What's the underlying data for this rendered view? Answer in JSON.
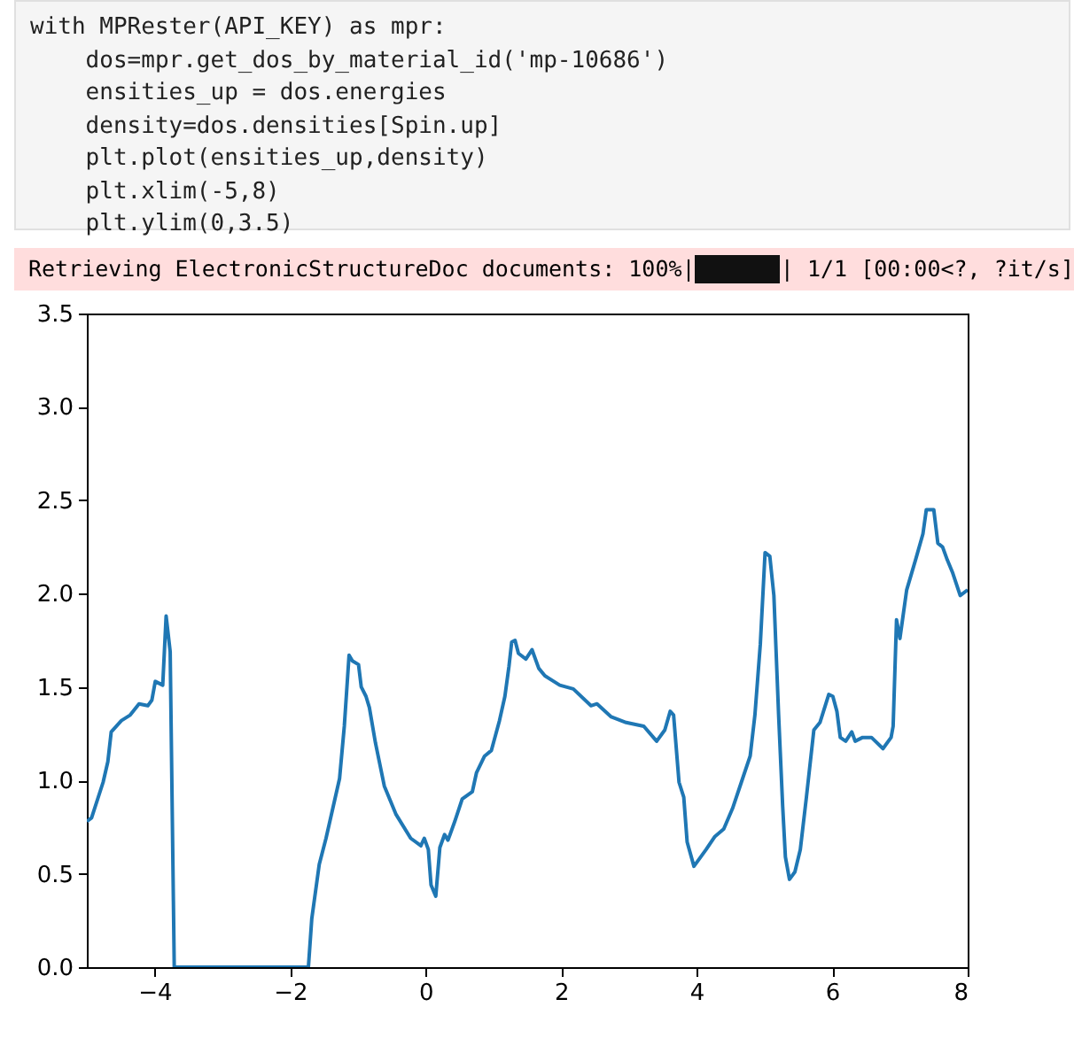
{
  "chart_data": {
    "type": "line",
    "annotations": [
      "with MPRester(API_KEY) as mpr:",
      "    dos=mpr.get_dos_by_material_id('mp-10686')",
      "    ensities_up = dos.energies",
      "    density=dos.densities[Spin.up]",
      "    plt.plot(ensities_up,density)",
      "    plt.xlim(-5,8)",
      "    plt.ylim(0,3.5)",
      "Retrieving ElectronicStructureDoc documents: 100%|",
      "| 1/1 [00:00<?, ?it/s]"
    ],
    "x": [
      -5,
      -4.93,
      -4.76,
      -4.69,
      -4.64,
      -4.49,
      -4.36,
      -4.23,
      -4.1,
      -4.04,
      -3.99,
      -3.88,
      -3.83,
      -3.77,
      -3.71,
      -1.73,
      -1.68,
      -1.57,
      -1.47,
      -1.37,
      -1.27,
      -1.2,
      -1.13,
      -1.08,
      -0.99,
      -0.95,
      -0.88,
      -0.83,
      -0.74,
      -0.61,
      -0.44,
      -0.22,
      -0.07,
      -0.02,
      0.04,
      0.08,
      0.15,
      0.21,
      0.28,
      0.33,
      0.43,
      0.54,
      0.69,
      0.75,
      0.87,
      0.97,
      1.09,
      1.17,
      1.23,
      1.27,
      1.32,
      1.37,
      1.48,
      1.57,
      1.67,
      1.76,
      1.98,
      2.18,
      2.44,
      2.53,
      2.74,
      2.96,
      3.22,
      3.41,
      3.53,
      3.61,
      3.66,
      3.74,
      3.81,
      3.86,
      3.96,
      4.14,
      4.27,
      4.4,
      4.53,
      4.66,
      4.79,
      4.86,
      4.94,
      5.01,
      5.08,
      5.14,
      5.21,
      5.27,
      5.31,
      5.37,
      5.45,
      5.53,
      5.62,
      5.73,
      5.82,
      5.95,
      6.01,
      6.07,
      6.12,
      6.2,
      6.29,
      6.34,
      6.45,
      6.58,
      6.75,
      6.87,
      6.9,
      6.95,
      7.0,
      7.1,
      7.23,
      7.34,
      7.39,
      7.5,
      7.56,
      7.63,
      7.7,
      7.78,
      7.89,
      8
    ],
    "series": [
      {
        "color": "#1f77b4",
        "values": [
          0.78,
          0.8,
          0.99,
          1.1,
          1.26,
          1.32,
          1.35,
          1.41,
          1.4,
          1.43,
          1.53,
          1.51,
          1.88,
          1.69,
          0,
          0,
          0.26,
          0.55,
          0.69,
          0.85,
          1.01,
          1.29,
          1.67,
          1.64,
          1.62,
          1.5,
          1.45,
          1.39,
          1.2,
          0.97,
          0.82,
          0.69,
          0.65,
          0.69,
          0.63,
          0.44,
          0.38,
          0.64,
          0.71,
          0.68,
          0.78,
          0.9,
          0.94,
          1.04,
          1.13,
          1.16,
          1.32,
          1.45,
          1.61,
          1.74,
          1.75,
          1.68,
          1.65,
          1.7,
          1.6,
          1.56,
          1.51,
          1.49,
          1.4,
          1.41,
          1.34,
          1.31,
          1.29,
          1.21,
          1.27,
          1.37,
          1.35,
          0.99,
          0.91,
          0.67,
          0.54,
          0.63,
          0.7,
          0.74,
          0.85,
          0.99,
          1.13,
          1.35,
          1.73,
          2.22,
          2.2,
          1.99,
          1.35,
          0.86,
          0.59,
          0.47,
          0.51,
          0.63,
          0.91,
          1.27,
          1.31,
          1.46,
          1.45,
          1.37,
          1.23,
          1.21,
          1.26,
          1.21,
          1.23,
          1.23,
          1.17,
          1.23,
          1.29,
          1.86,
          1.76,
          2.02,
          2.18,
          2.32,
          2.45,
          2.45,
          2.27,
          2.25,
          2.18,
          2.11,
          1.99,
          2.02
        ]
      }
    ],
    "xlim": [
      -5,
      8
    ],
    "ylim": [
      0,
      3.5
    ],
    "xticks": [
      {
        "value": -4,
        "label": "−4"
      },
      {
        "value": -2,
        "label": "−2"
      },
      0,
      2,
      4,
      6,
      8
    ],
    "yticks": [
      {
        "value": 0,
        "label": "0.0"
      },
      {
        "value": 0.5,
        "label": "0.5"
      },
      {
        "value": 1,
        "label": "1.0"
      },
      {
        "value": 1.5,
        "label": "1.5"
      },
      {
        "value": 2,
        "label": "2.0"
      },
      {
        "value": 2.5,
        "label": "2.5"
      },
      {
        "value": 3,
        "label": "3.0"
      },
      {
        "value": 3.5,
        "label": "3.5"
      }
    ],
    "grid": false
  }
}
